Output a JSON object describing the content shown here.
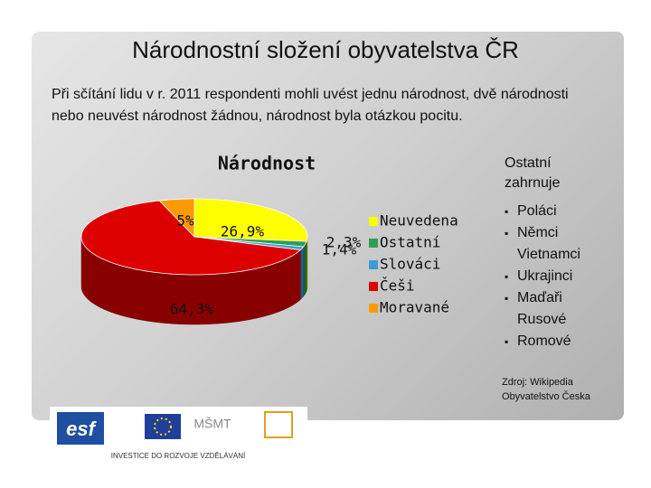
{
  "slide": {
    "title": "Národnostní složení obyvatelstva ČR",
    "subtitle": "Při sčítání lidu v r. 2011 respondenti mohli uvést jednu národnost, dvě národnosti nebo neuvést národnost žádnou, národnost byla otázkou pocitu."
  },
  "chart_data": {
    "type": "pie",
    "title": "Národnost",
    "categories": [
      "Neuvedena",
      "Ostatní",
      "Slováci",
      "Češi",
      "Moravané"
    ],
    "values": [
      26.9,
      2.3,
      1.4,
      64.3,
      5
    ],
    "value_labels": [
      "26,9%",
      "2,3%",
      "1,4%",
      "64,3%",
      "5%"
    ],
    "colors": [
      "#ffff00",
      "#2e9e4f",
      "#3d9ad6",
      "#dd0000",
      "#ff9900"
    ]
  },
  "sidebar": {
    "heading": "Ostatní zahrnuje",
    "items": [
      "Poláci",
      "Němci Vietnamci",
      "Ukrajinci",
      "Maďaři Rusové",
      "Romové"
    ]
  },
  "source": [
    "Zdroj: Wikipedia",
    "Obyvatelstvo Česka"
  ],
  "footer": {
    "logo": "esf",
    "slogan": "INVESTICE DO ROZVOJE VZDĚLÁVÁNÍ"
  }
}
